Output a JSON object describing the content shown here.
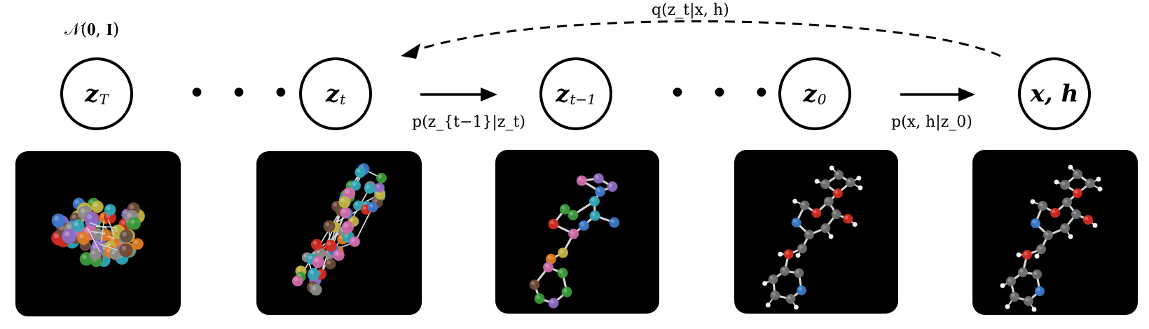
{
  "prior_label": "𝒩(𝟎, 𝐈)",
  "forward_label": "q(z_t|x, h)",
  "nodes": [
    {
      "main": "z",
      "sub": "T"
    },
    {
      "main": "z",
      "sub": "t"
    },
    {
      "main": "z",
      "sub": "t−1"
    },
    {
      "main": "z",
      "sub": "0"
    },
    {
      "main": "x, h",
      "sub": ""
    }
  ],
  "transition_labels": {
    "denoise": "p(z_{t−1}|z_t)",
    "decode": "p(x, h|z_0)"
  },
  "ellipsis": "• • •",
  "panels": [
    {
      "stage": "z_T",
      "description": "noisy point cloud"
    },
    {
      "stage": "z_t",
      "description": "partially denoised"
    },
    {
      "stage": "z_{t-1}",
      "description": "more structured"
    },
    {
      "stage": "z_0",
      "description": "nearly clean molecule"
    },
    {
      "stage": "x, h",
      "description": "final molecule"
    }
  ],
  "colors": {
    "stroke": "#000000",
    "panel_bg": "#000000",
    "atom_C": "#6e6e6e",
    "atom_O": "#d22a20",
    "atom_N": "#3b78c9",
    "atom_H": "#ffffff",
    "noise_palette": [
      "#e07b20",
      "#8e6bc4",
      "#2fa6b8",
      "#3b9a3a",
      "#d22a20",
      "#d06aa8",
      "#c2b240",
      "#8a8a8a",
      "#3b78c9",
      "#6b4a3a"
    ]
  }
}
